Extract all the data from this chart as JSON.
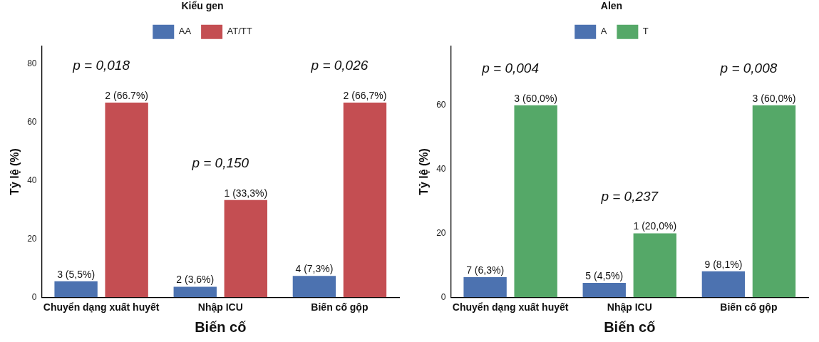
{
  "chart_data": [
    {
      "type": "bar",
      "xlabel": "Biến cố",
      "ylabel": "Tỷ lệ (%)",
      "legend_title": "Kiểu gen",
      "legend": "top",
      "categories": [
        "Chuyển dạng xuất huyết",
        "Nhập ICU",
        "Biến cố gộp"
      ],
      "series": [
        {
          "name": "AA",
          "color": "#4c72b0",
          "values": [
            5.5,
            3.6,
            7.3
          ],
          "value_labels": [
            "3 (5,5%)",
            "2 (3,6%)",
            "4 (7,3%)"
          ]
        },
        {
          "name": "AT/TT",
          "color": "#c44e52",
          "values": [
            66.7,
            33.3,
            66.7
          ],
          "value_labels": [
            "2 (66.7%)",
            "1 (33,3%)",
            "2 (66,7%)"
          ]
        }
      ],
      "ylim": [
        0,
        86
      ],
      "yticks": [
        0,
        20,
        40,
        60,
        80
      ],
      "grid": false,
      "annotations": [
        "p = 0,018",
        "p = 0,150",
        "p = 0,026"
      ]
    },
    {
      "type": "bar",
      "xlabel": "Biến cố",
      "ylabel": "Tỷ lệ (%)",
      "legend_title": "Alen",
      "legend": "top",
      "categories": [
        "Chuyển dạng xuất huyết",
        "Nhập ICU",
        "Biến cố gộp"
      ],
      "series": [
        {
          "name": "A",
          "color": "#4c72b0",
          "values": [
            6.3,
            4.5,
            8.1
          ],
          "value_labels": [
            "7 (6,3%)",
            "5 (4,5%)",
            "9 (8,1%)"
          ]
        },
        {
          "name": "T",
          "color": "#55a868",
          "values": [
            60,
            20,
            60
          ],
          "value_labels": [
            "3 (60,0%)",
            "1 (20,0%)",
            "3 (60,0%)"
          ]
        }
      ],
      "ylim": [
        0,
        78.5
      ],
      "yticks": [
        0,
        20,
        40,
        60
      ],
      "grid": false,
      "annotations": [
        "p = 0,004",
        "p = 0,237",
        "p = 0,008"
      ]
    }
  ]
}
